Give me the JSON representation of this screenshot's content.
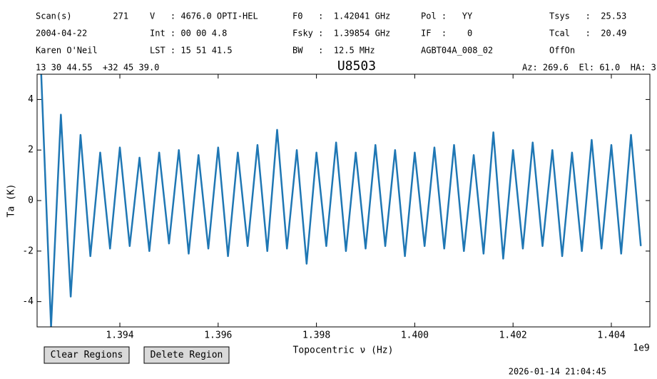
{
  "header": {
    "rows": [
      [
        "Scan(s)        271",
        "V   : 4676.0 OPTI-HEL",
        "F0   :  1.42041 GHz",
        "Pol :   YY",
        "Tsys   :  25.53"
      ],
      [
        "2004-04-22",
        "Int : 00 00 4.8",
        "Fsky :  1.39854 GHz",
        "IF  :    0",
        "Tcal   :  20.49"
      ],
      [
        "Karen O'Neil",
        "LST : 15 51 41.5",
        "BW   :  12.5 MHz",
        "AGBT04A_008_02",
        "OffOn"
      ]
    ],
    "coords": "13 30 44.55  +32 45 39.0",
    "pointing": "Az: 269.6  El: 61.0  HA: 3"
  },
  "chart_data": {
    "type": "line",
    "title": "U8503",
    "x_label": "Topocentric ν (Hz)",
    "y_label": "Ta (K)",
    "x_offset_label": "1e9",
    "color": "#1f77b4",
    "x": [
      1.3924,
      1.3926,
      1.3928,
      1.393,
      1.3932,
      1.3934,
      1.3936,
      1.3938,
      1.394,
      1.3942,
      1.3944,
      1.3946,
      1.3948,
      1.395,
      1.3952,
      1.3954,
      1.3956,
      1.3958,
      1.396,
      1.3962,
      1.3964,
      1.3966,
      1.3968,
      1.397,
      1.3972,
      1.3974,
      1.3976,
      1.3978,
      1.398,
      1.3982,
      1.3984,
      1.3986,
      1.3988,
      1.399,
      1.3992,
      1.3994,
      1.3996,
      1.3998,
      1.4,
      1.4002,
      1.4004,
      1.4006,
      1.4008,
      1.401,
      1.4012,
      1.4014,
      1.4016,
      1.4018,
      1.402,
      1.4022,
      1.4024,
      1.4026,
      1.4028,
      1.403,
      1.4032,
      1.4034,
      1.4036,
      1.4038,
      1.404,
      1.4042,
      1.4044,
      1.4046
    ],
    "values": [
      5,
      -5,
      3.4,
      -3.8,
      2.6,
      -2.2,
      1.9,
      -1.9,
      2.1,
      -1.8,
      1.7,
      -2,
      1.9,
      -1.7,
      2,
      -2.1,
      1.8,
      -1.9,
      2.1,
      -2.2,
      1.9,
      -1.8,
      2.2,
      -2,
      2.8,
      -1.9,
      2,
      -2.5,
      1.9,
      -1.8,
      2.3,
      -2,
      1.9,
      -1.9,
      2.2,
      -1.8,
      2,
      -2.2,
      1.9,
      -1.8,
      2.1,
      -1.9,
      2.2,
      -2,
      1.8,
      -2.1,
      2.7,
      -2.3,
      2,
      -1.9,
      2.3,
      -1.8,
      2,
      -2.2,
      1.9,
      -2,
      2.4,
      -1.9,
      2.2,
      -2.1,
      2.6,
      -1.8
    ],
    "xlim": [
      1.392316,
      1.404784
    ],
    "ylim": [
      -5,
      5
    ],
    "xticks": [
      {
        "value": 1.394,
        "label": "1.394"
      },
      {
        "value": 1.396,
        "label": "1.396"
      },
      {
        "value": 1.398,
        "label": "1.398"
      },
      {
        "value": 1.4,
        "label": "1.400"
      },
      {
        "value": 1.402,
        "label": "1.402"
      },
      {
        "value": 1.404,
        "label": "1.404"
      }
    ],
    "yticks": [
      -4,
      -2,
      0,
      2,
      4
    ]
  },
  "buttons": [
    "Clear Regions",
    "Delete Region"
  ],
  "timestamp": "2026-01-14 21:04:45"
}
